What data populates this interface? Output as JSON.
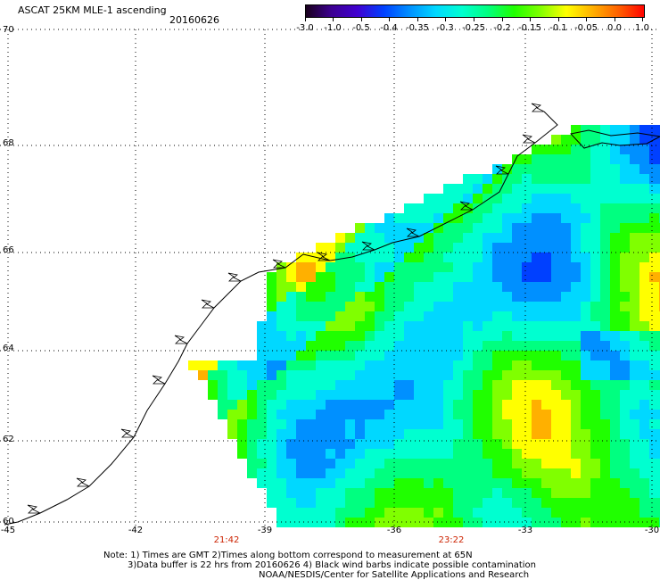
{
  "header": {
    "title": "ASCAT 25KM MLE-1 ascending",
    "date": "20160626"
  },
  "colorbar": {
    "labels": [
      "-3.0",
      "-1.0",
      "-0.5",
      "-0.4",
      "-0.35",
      "-0.3",
      "-0.25",
      "-0.2",
      "-0.15",
      "-0.1",
      "-0.05",
      "0.0",
      "1.0"
    ],
    "colors": [
      "#180018",
      "#3c0090",
      "#4000d0",
      "#0040ff",
      "#0090ff",
      "#00d8ff",
      "#00ffd0",
      "#00ff80",
      "#20ff00",
      "#80ff00",
      "#ffff00",
      "#ffb000",
      "#ff6000",
      "#ff0000"
    ]
  },
  "map": {
    "lat_labels": [
      "70",
      "68",
      "66",
      "64",
      "62",
      "60"
    ],
    "lon_labels": [
      "-45",
      "-42",
      "-39",
      "-36",
      "-33",
      "-30"
    ],
    "times": [
      "21:42",
      "23:22"
    ],
    "land_color": "#ffffff",
    "coast_color": "#000000"
  },
  "notes": {
    "line1": "Note: 1) Times are GMT 2)Times along bottom correspond to measurement at 65N",
    "line2": "3)Data buffer is 22 hrs from 20160626 4) Black wind barbs indicate possible contamination",
    "line3": "NOAA/NESDIS/Center for Satellite Applications and Research"
  }
}
